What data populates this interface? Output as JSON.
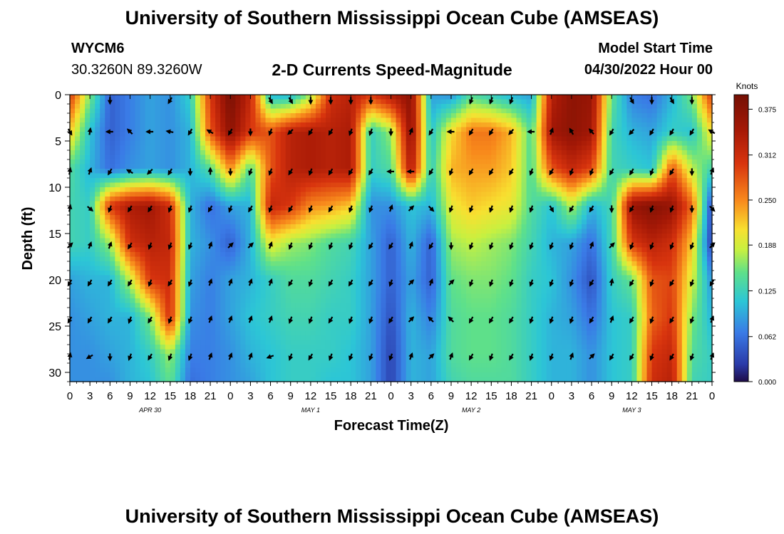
{
  "chart_data": {
    "type": "heatmap",
    "title": "University of Southern Mississippi Ocean Cube (AMSEAS)",
    "subtitle": "2-D Currents Speed-Magnitude",
    "station": "WYCM6",
    "location": "30.3260N  89.3260W",
    "model_start_label": "Model Start Time",
    "model_start_value": "04/30/2022 Hour 00",
    "xlabel": "Forecast Time(Z)",
    "ylabel": "Depth (ft)",
    "x_range_hours": [
      0,
      96
    ],
    "y_range_ft": [
      0,
      31
    ],
    "x_tick_labels": [
      "0",
      "3",
      "6",
      "9",
      "12",
      "15",
      "18",
      "21",
      "0",
      "3",
      "6",
      "9",
      "12",
      "15",
      "18",
      "21",
      "0",
      "3",
      "6",
      "9",
      "12",
      "15",
      "18",
      "21",
      "0",
      "3",
      "6",
      "9",
      "12",
      "15",
      "18",
      "21",
      "0"
    ],
    "y_ticks": [
      0,
      5,
      10,
      15,
      20,
      25,
      30
    ],
    "y_tick_labels": [
      "0",
      "5",
      "10",
      "15",
      "20",
      "25",
      "30"
    ],
    "date_labels": [
      {
        "text": "APR 30",
        "hour": 12
      },
      {
        "text": "MAY 1",
        "hour": 36
      },
      {
        "text": "MAY 2",
        "hour": 60
      },
      {
        "text": "MAY 3",
        "hour": 84
      }
    ],
    "colorbar": {
      "unit": "Knots",
      "ticks": [
        0.375,
        0.312,
        0.25,
        0.188,
        0.125,
        0.062,
        0.0
      ],
      "tick_labels": [
        "0.375",
        "0.312",
        "0.250",
        "0.188",
        "0.125",
        "0.062",
        "0.000"
      ],
      "min": 0.0,
      "max": 0.395
    },
    "speed_grid": {
      "hours": [
        0,
        3,
        6,
        9,
        12,
        15,
        18,
        21,
        24,
        27,
        30,
        33,
        36,
        39,
        42,
        45,
        48,
        51,
        54,
        57,
        60,
        63,
        66,
        69,
        72,
        75,
        78,
        81,
        84,
        87,
        90,
        93,
        96
      ],
      "depths_ft": [
        0,
        4,
        8,
        12,
        16,
        20,
        24,
        28,
        31
      ],
      "values_knots": [
        [
          0.3,
          0.16,
          0.05,
          0.07,
          0.09,
          0.08,
          0.12,
          0.3,
          0.39,
          0.32,
          0.1,
          0.1,
          0.17,
          0.31,
          0.33,
          0.3,
          0.34,
          0.37,
          0.09,
          0.08,
          0.14,
          0.12,
          0.1,
          0.09,
          0.33,
          0.37,
          0.36,
          0.15,
          0.07,
          0.06,
          0.1,
          0.16,
          0.3
        ],
        [
          0.22,
          0.11,
          0.05,
          0.07,
          0.09,
          0.08,
          0.1,
          0.28,
          0.37,
          0.3,
          0.28,
          0.33,
          0.34,
          0.33,
          0.34,
          0.12,
          0.17,
          0.37,
          0.11,
          0.21,
          0.26,
          0.26,
          0.23,
          0.14,
          0.35,
          0.37,
          0.35,
          0.13,
          0.1,
          0.09,
          0.12,
          0.11,
          0.21
        ],
        [
          0.14,
          0.1,
          0.06,
          0.08,
          0.09,
          0.08,
          0.1,
          0.14,
          0.25,
          0.14,
          0.28,
          0.33,
          0.34,
          0.33,
          0.34,
          0.12,
          0.14,
          0.34,
          0.12,
          0.23,
          0.24,
          0.24,
          0.22,
          0.14,
          0.28,
          0.32,
          0.29,
          0.13,
          0.12,
          0.11,
          0.28,
          0.18,
          0.13
        ],
        [
          0.13,
          0.12,
          0.3,
          0.34,
          0.35,
          0.31,
          0.1,
          0.06,
          0.09,
          0.1,
          0.32,
          0.3,
          0.25,
          0.24,
          0.22,
          0.08,
          0.08,
          0.11,
          0.1,
          0.2,
          0.22,
          0.21,
          0.2,
          0.14,
          0.11,
          0.18,
          0.1,
          0.13,
          0.36,
          0.38,
          0.36,
          0.27,
          0.03
        ],
        [
          0.13,
          0.12,
          0.17,
          0.31,
          0.33,
          0.32,
          0.1,
          0.08,
          0.05,
          0.1,
          0.2,
          0.17,
          0.16,
          0.14,
          0.13,
          0.09,
          0.05,
          0.1,
          0.05,
          0.17,
          0.18,
          0.17,
          0.16,
          0.13,
          0.1,
          0.09,
          0.06,
          0.13,
          0.3,
          0.33,
          0.31,
          0.22,
          0.02
        ],
        [
          0.09,
          0.1,
          0.1,
          0.18,
          0.3,
          0.31,
          0.09,
          0.07,
          0.09,
          0.1,
          0.12,
          0.14,
          0.14,
          0.13,
          0.12,
          0.09,
          0.05,
          0.09,
          0.05,
          0.15,
          0.16,
          0.16,
          0.15,
          0.12,
          0.11,
          0.08,
          0.04,
          0.12,
          0.15,
          0.28,
          0.29,
          0.19,
          0.08
        ],
        [
          0.08,
          0.09,
          0.1,
          0.1,
          0.16,
          0.31,
          0.08,
          0.07,
          0.09,
          0.11,
          0.12,
          0.13,
          0.13,
          0.12,
          0.12,
          0.09,
          0.04,
          0.1,
          0.07,
          0.14,
          0.15,
          0.15,
          0.14,
          0.12,
          0.1,
          0.09,
          0.06,
          0.11,
          0.12,
          0.27,
          0.3,
          0.16,
          0.1
        ],
        [
          0.08,
          0.08,
          0.09,
          0.1,
          0.12,
          0.17,
          0.07,
          0.07,
          0.08,
          0.1,
          0.11,
          0.12,
          0.12,
          0.12,
          0.11,
          0.09,
          0.03,
          0.1,
          0.09,
          0.14,
          0.15,
          0.15,
          0.14,
          0.12,
          0.1,
          0.1,
          0.08,
          0.11,
          0.12,
          0.3,
          0.32,
          0.14,
          0.12
        ],
        [
          0.08,
          0.08,
          0.08,
          0.1,
          0.11,
          0.15,
          0.06,
          0.07,
          0.08,
          0.09,
          0.11,
          0.12,
          0.12,
          0.11,
          0.11,
          0.09,
          0.03,
          0.1,
          0.09,
          0.13,
          0.14,
          0.14,
          0.14,
          0.12,
          0.1,
          0.1,
          0.08,
          0.11,
          0.12,
          0.31,
          0.33,
          0.13,
          0.12
        ]
      ]
    },
    "vector_grid": {
      "depths_ft": [
        0.6,
        4.0,
        8.3,
        12.3,
        16.3,
        20.3,
        24.3,
        28.3
      ],
      "directions_deg_cw_from_north": [
        [
          null,
          null,
          180,
          null,
          null,
          210,
          null,
          null,
          null,
          null,
          150,
          150,
          180,
          180,
          180,
          180,
          null,
          null,
          null,
          null,
          200,
          200,
          200,
          null,
          null,
          null,
          null,
          null,
          150,
          180,
          150,
          180,
          null
        ],
        [
          150,
          10,
          270,
          315,
          270,
          280,
          210,
          300,
          210,
          180,
          200,
          225,
          210,
          210,
          200,
          200,
          180,
          20,
          210,
          270,
          210,
          210,
          220,
          270,
          20,
          330,
          320,
          210,
          220,
          210,
          210,
          210,
          300
        ],
        [
          10,
          20,
          210,
          300,
          225,
          210,
          180,
          0,
          180,
          200,
          200,
          210,
          200,
          210,
          210,
          210,
          270,
          270,
          210,
          200,
          210,
          210,
          210,
          200,
          210,
          200,
          200,
          210,
          210,
          200,
          210,
          180,
          20
        ],
        [
          10,
          130,
          200,
          210,
          210,
          200,
          200,
          210,
          200,
          210,
          200,
          210,
          200,
          210,
          200,
          200,
          20,
          45,
          135,
          200,
          200,
          200,
          200,
          200,
          150,
          210,
          210,
          180,
          210,
          200,
          200,
          180,
          135
        ],
        [
          45,
          20,
          20,
          210,
          200,
          200,
          200,
          20,
          45,
          45,
          20,
          200,
          200,
          200,
          200,
          210,
          210,
          20,
          210,
          180,
          200,
          200,
          200,
          200,
          200,
          200,
          20,
          45,
          200,
          200,
          200,
          200,
          45
        ],
        [
          210,
          210,
          210,
          210,
          200,
          210,
          200,
          20,
          20,
          20,
          20,
          210,
          200,
          210,
          210,
          210,
          200,
          45,
          20,
          45,
          200,
          200,
          200,
          200,
          200,
          200,
          210,
          10,
          210,
          200,
          210,
          200,
          210
        ],
        [
          210,
          210,
          210,
          200,
          210,
          200,
          200,
          20,
          20,
          20,
          20,
          200,
          200,
          210,
          200,
          200,
          210,
          45,
          315,
          315,
          210,
          210,
          210,
          200,
          200,
          200,
          210,
          20,
          210,
          200,
          210,
          200,
          20
        ],
        [
          10,
          240,
          180,
          200,
          210,
          200,
          200,
          20,
          20,
          20,
          250,
          200,
          210,
          200,
          200,
          200,
          200,
          20,
          45,
          20,
          210,
          200,
          210,
          200,
          200,
          20,
          45,
          210,
          210,
          200,
          210,
          200,
          20
        ]
      ]
    }
  }
}
